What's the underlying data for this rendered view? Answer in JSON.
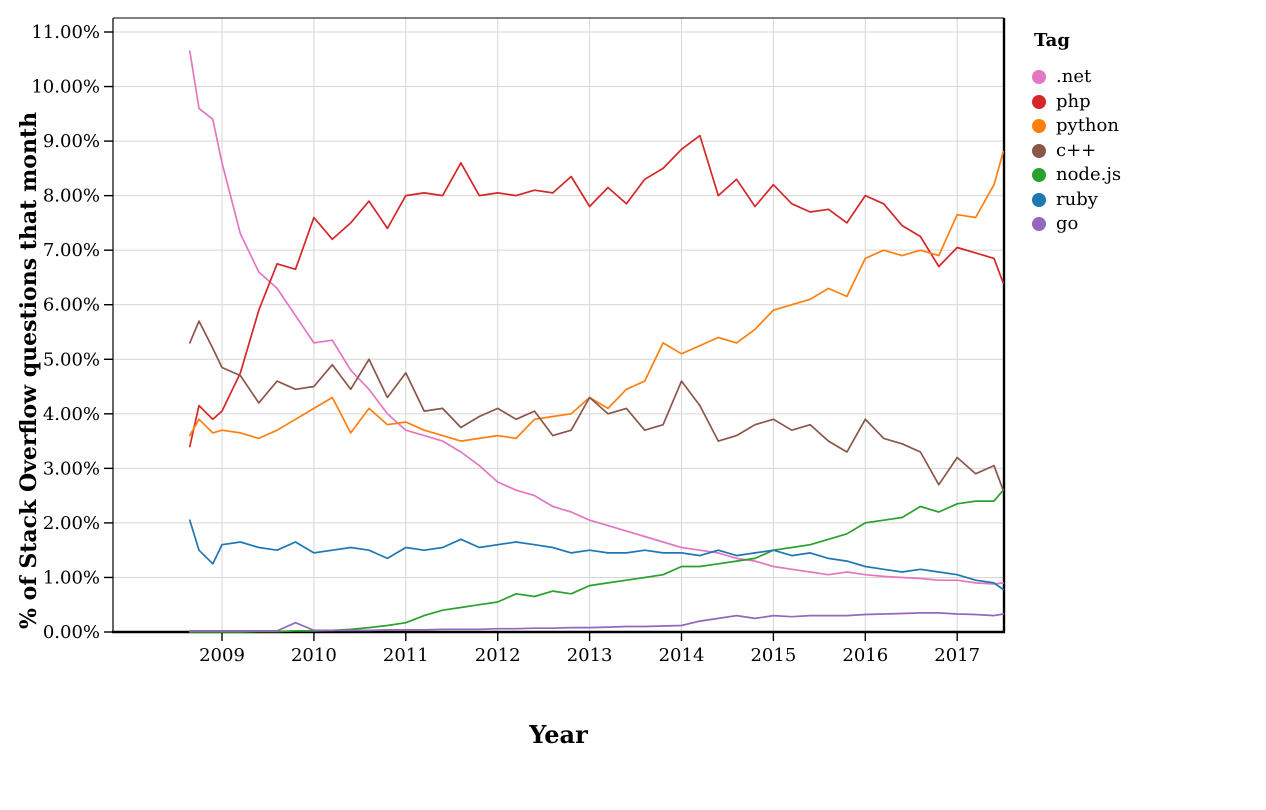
{
  "chart_data": {
    "type": "line",
    "title": "",
    "xlabel": "Year",
    "ylabel": "% of Stack Overflow questions that month",
    "legend_title": "Tag",
    "legend_position": "right",
    "grid": true,
    "xlim": [
      2007.8,
      2017.55
    ],
    "ylim": [
      0,
      11
    ],
    "xticks": [
      2009,
      2010,
      2011,
      2012,
      2013,
      2014,
      2015,
      2016,
      2017
    ],
    "ytick_labels": [
      "0.00%",
      "1.00%",
      "2.00%",
      "3.00%",
      "4.00%",
      "5.00%",
      "6.00%",
      "7.00%",
      "8.00%",
      "9.00%",
      "10.00%",
      "11.00%"
    ],
    "x_years": [
      2008.65,
      2008.75,
      2008.9,
      2009.0,
      2009.2,
      2009.4,
      2009.6,
      2009.8,
      2010.0,
      2010.2,
      2010.4,
      2010.6,
      2010.8,
      2011.0,
      2011.2,
      2011.4,
      2011.6,
      2011.8,
      2012.0,
      2012.2,
      2012.4,
      2012.6,
      2012.8,
      2013.0,
      2013.2,
      2013.4,
      2013.6,
      2013.8,
      2014.0,
      2014.2,
      2014.4,
      2014.6,
      2014.8,
      2015.0,
      2015.2,
      2015.4,
      2015.6,
      2015.8,
      2016.0,
      2016.2,
      2016.4,
      2016.6,
      2016.8,
      2017.0,
      2017.2,
      2017.4,
      2017.5
    ],
    "series": [
      {
        "name": ".net",
        "color": "#e377c2",
        "values": [
          10.65,
          9.6,
          9.4,
          8.6,
          7.3,
          6.6,
          6.3,
          5.8,
          5.3,
          5.35,
          4.8,
          4.45,
          4.0,
          3.7,
          3.6,
          3.5,
          3.3,
          3.05,
          2.75,
          2.6,
          2.5,
          2.3,
          2.2,
          2.05,
          1.95,
          1.85,
          1.75,
          1.65,
          1.55,
          1.5,
          1.45,
          1.35,
          1.3,
          1.2,
          1.15,
          1.1,
          1.05,
          1.1,
          1.05,
          1.02,
          1.0,
          0.98,
          0.95,
          0.95,
          0.9,
          0.88,
          0.9
        ]
      },
      {
        "name": "php",
        "color": "#d62728",
        "values": [
          3.4,
          4.15,
          3.9,
          4.05,
          4.75,
          5.9,
          6.75,
          6.65,
          7.6,
          7.2,
          7.5,
          7.9,
          7.4,
          8.0,
          8.05,
          8.0,
          8.6,
          8.0,
          8.05,
          8.0,
          8.1,
          8.05,
          8.35,
          7.8,
          8.15,
          7.85,
          8.3,
          8.5,
          8.85,
          9.1,
          8.0,
          8.3,
          7.8,
          8.2,
          7.85,
          7.7,
          7.75,
          7.5,
          8.0,
          7.85,
          7.45,
          7.25,
          6.7,
          7.05,
          6.95,
          6.85,
          6.4
        ]
      },
      {
        "name": "python",
        "color": "#ff7f0e",
        "values": [
          3.6,
          3.9,
          3.65,
          3.7,
          3.65,
          3.55,
          3.7,
          3.9,
          4.1,
          4.3,
          3.65,
          4.1,
          3.8,
          3.85,
          3.7,
          3.6,
          3.5,
          3.55,
          3.6,
          3.55,
          3.9,
          3.95,
          4.0,
          4.3,
          4.1,
          4.45,
          4.6,
          5.3,
          5.1,
          5.25,
          5.4,
          5.3,
          5.55,
          5.9,
          6.0,
          6.1,
          6.3,
          6.15,
          6.85,
          7.0,
          6.9,
          7.0,
          6.9,
          7.65,
          7.6,
          8.2,
          8.8
        ]
      },
      {
        "name": "c++",
        "color": "#8c564b",
        "values": [
          5.3,
          5.7,
          5.2,
          4.85,
          4.7,
          4.2,
          4.6,
          4.45,
          4.5,
          4.9,
          4.45,
          5.0,
          4.3,
          4.75,
          4.05,
          4.1,
          3.75,
          3.95,
          4.1,
          3.9,
          4.05,
          3.6,
          3.7,
          4.3,
          4.0,
          4.1,
          3.7,
          3.8,
          4.6,
          4.15,
          3.5,
          3.6,
          3.8,
          3.9,
          3.7,
          3.8,
          3.5,
          3.3,
          3.9,
          3.55,
          3.45,
          3.3,
          2.7,
          3.2,
          2.9,
          3.05,
          2.6
        ]
      },
      {
        "name": "node.js",
        "color": "#2ca02c",
        "values": [
          0.0,
          0.0,
          0.0,
          0.0,
          0.0,
          0.01,
          0.01,
          0.02,
          0.02,
          0.03,
          0.05,
          0.08,
          0.12,
          0.17,
          0.3,
          0.4,
          0.45,
          0.5,
          0.55,
          0.7,
          0.65,
          0.75,
          0.7,
          0.85,
          0.9,
          0.95,
          1.0,
          1.05,
          1.2,
          1.2,
          1.25,
          1.3,
          1.35,
          1.5,
          1.55,
          1.6,
          1.7,
          1.8,
          2.0,
          2.05,
          2.1,
          2.3,
          2.2,
          2.35,
          2.4,
          2.4,
          2.6
        ]
      },
      {
        "name": "ruby",
        "color": "#1f77b4",
        "values": [
          2.05,
          1.5,
          1.25,
          1.6,
          1.65,
          1.55,
          1.5,
          1.65,
          1.45,
          1.5,
          1.55,
          1.5,
          1.35,
          1.55,
          1.5,
          1.55,
          1.7,
          1.55,
          1.6,
          1.65,
          1.6,
          1.55,
          1.45,
          1.5,
          1.45,
          1.45,
          1.5,
          1.45,
          1.45,
          1.4,
          1.5,
          1.4,
          1.45,
          1.5,
          1.4,
          1.45,
          1.35,
          1.3,
          1.2,
          1.15,
          1.1,
          1.15,
          1.1,
          1.05,
          0.95,
          0.9,
          0.78
        ]
      },
      {
        "name": "go",
        "color": "#9467bd",
        "values": [
          0.02,
          0.02,
          0.02,
          0.02,
          0.02,
          0.02,
          0.02,
          0.17,
          0.03,
          0.03,
          0.03,
          0.03,
          0.04,
          0.04,
          0.04,
          0.05,
          0.05,
          0.05,
          0.06,
          0.06,
          0.07,
          0.07,
          0.08,
          0.08,
          0.09,
          0.1,
          0.1,
          0.11,
          0.12,
          0.2,
          0.25,
          0.3,
          0.25,
          0.3,
          0.28,
          0.3,
          0.3,
          0.3,
          0.32,
          0.33,
          0.34,
          0.35,
          0.35,
          0.33,
          0.32,
          0.3,
          0.33
        ]
      }
    ]
  }
}
